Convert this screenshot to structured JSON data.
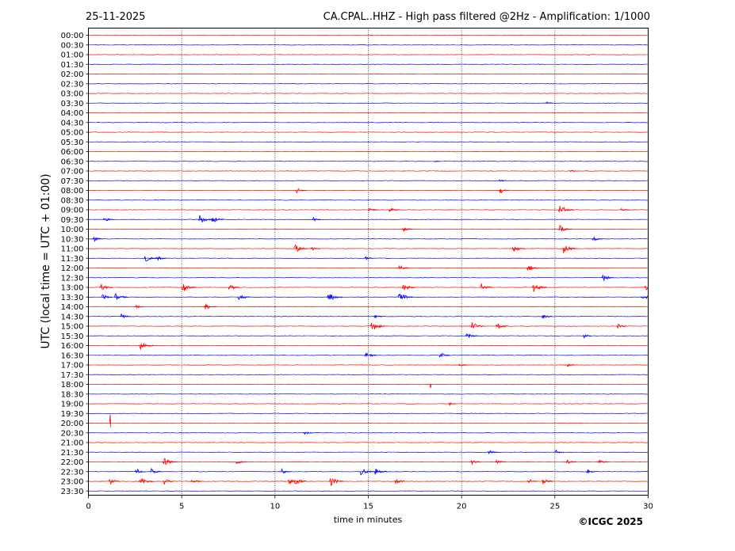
{
  "chart_data": {
    "type": "line",
    "date": "25-11-2025",
    "title": "CA.CPAL..HHZ - High pass filtered @2Hz - Amplification: 1/1000",
    "xlabel": "time in minutes",
    "ylabel": "UTC (local time = UTC + 01:00)",
    "copyright": "©ICGC 2025",
    "xlim": [
      0,
      30
    ],
    "x_ticks": [
      "0",
      "5",
      "10",
      "15",
      "20",
      "25",
      "30"
    ],
    "x_tick_values": [
      0,
      5,
      10,
      15,
      20,
      25,
      30
    ],
    "vgrid_minutes": [
      5,
      10,
      15,
      20,
      25
    ],
    "rows": [
      "00:00",
      "00:30",
      "01:00",
      "01:30",
      "02:00",
      "02:30",
      "03:00",
      "03:30",
      "04:00",
      "04:30",
      "05:00",
      "05:30",
      "06:00",
      "06:30",
      "07:00",
      "07:30",
      "08:00",
      "08:30",
      "09:00",
      "09:30",
      "10:00",
      "10:30",
      "11:00",
      "11:30",
      "12:00",
      "12:30",
      "13:00",
      "13:30",
      "14:00",
      "14:30",
      "15:00",
      "15:30",
      "16:00",
      "16:30",
      "17:00",
      "17:30",
      "18:00",
      "18:30",
      "19:00",
      "19:30",
      "20:00",
      "20:30",
      "21:00",
      "21:30",
      "22:00",
      "22:30",
      "23:00",
      "23:30"
    ],
    "trace_colors": [
      "#ff0000",
      "#0000ff"
    ],
    "events": [
      {
        "row": "03:30",
        "minute": 24.5,
        "amp": 0.25
      },
      {
        "row": "06:30",
        "minute": 18.5,
        "amp": 0.15
      },
      {
        "row": "07:00",
        "minute": 25.8,
        "amp": 0.18
      },
      {
        "row": "07:30",
        "minute": 22.0,
        "amp": 0.3
      },
      {
        "row": "08:00",
        "minute": 11.1,
        "amp": 0.55
      },
      {
        "row": "08:00",
        "minute": 22.0,
        "amp": 0.6
      },
      {
        "row": "08:30",
        "minute": 30.0,
        "amp": 0.5
      },
      {
        "row": "09:00",
        "minute": 15.0,
        "amp": 0.5
      },
      {
        "row": "09:00",
        "minute": 16.1,
        "amp": 0.6
      },
      {
        "row": "09:00",
        "minute": 25.2,
        "amp": 1.0
      },
      {
        "row": "09:00",
        "minute": 28.5,
        "amp": 0.4
      },
      {
        "row": "09:30",
        "minute": 0.8,
        "amp": 0.5
      },
      {
        "row": "09:30",
        "minute": 5.9,
        "amp": 0.9
      },
      {
        "row": "09:30",
        "minute": 6.6,
        "amp": 0.7
      },
      {
        "row": "09:30",
        "minute": 12.0,
        "amp": 0.4
      },
      {
        "row": "10:00",
        "minute": 16.8,
        "amp": 0.55
      },
      {
        "row": "10:00",
        "minute": 25.2,
        "amp": 0.8
      },
      {
        "row": "10:30",
        "minute": 0.2,
        "amp": 0.6
      },
      {
        "row": "10:30",
        "minute": 27.0,
        "amp": 0.5
      },
      {
        "row": "11:00",
        "minute": 11.0,
        "amp": 0.9
      },
      {
        "row": "11:00",
        "minute": 11.9,
        "amp": 0.5
      },
      {
        "row": "11:00",
        "minute": 22.7,
        "amp": 0.8
      },
      {
        "row": "11:00",
        "minute": 25.4,
        "amp": 0.9
      },
      {
        "row": "11:30",
        "minute": 3.0,
        "amp": 0.7
      },
      {
        "row": "11:30",
        "minute": 3.6,
        "amp": 0.6
      },
      {
        "row": "11:30",
        "minute": 14.8,
        "amp": 0.4
      },
      {
        "row": "12:00",
        "minute": 16.6,
        "amp": 0.6
      },
      {
        "row": "12:00",
        "minute": 23.5,
        "amp": 0.7
      },
      {
        "row": "12:30",
        "minute": 27.5,
        "amp": 0.7
      },
      {
        "row": "13:00",
        "minute": 0.6,
        "amp": 0.8
      },
      {
        "row": "13:00",
        "minute": 5.0,
        "amp": 0.9
      },
      {
        "row": "13:00",
        "minute": 7.5,
        "amp": 0.6
      },
      {
        "row": "13:00",
        "minute": 16.8,
        "amp": 0.8
      },
      {
        "row": "13:00",
        "minute": 21.0,
        "amp": 0.7
      },
      {
        "row": "13:00",
        "minute": 23.8,
        "amp": 0.9
      },
      {
        "row": "13:00",
        "minute": 29.8,
        "amp": 1.0
      },
      {
        "row": "13:30",
        "minute": 0.7,
        "amp": 0.6
      },
      {
        "row": "13:30",
        "minute": 1.4,
        "amp": 0.8
      },
      {
        "row": "13:30",
        "minute": 8.0,
        "amp": 0.7
      },
      {
        "row": "13:30",
        "minute": 12.8,
        "amp": 1.0
      },
      {
        "row": "13:30",
        "minute": 16.6,
        "amp": 0.9
      },
      {
        "row": "13:30",
        "minute": 29.6,
        "amp": 0.7
      },
      {
        "row": "14:00",
        "minute": 2.5,
        "amp": 0.4
      },
      {
        "row": "14:00",
        "minute": 6.2,
        "amp": 0.7
      },
      {
        "row": "14:30",
        "minute": 1.7,
        "amp": 0.5
      },
      {
        "row": "14:30",
        "minute": 15.3,
        "amp": 0.4
      },
      {
        "row": "14:30",
        "minute": 24.3,
        "amp": 0.5
      },
      {
        "row": "15:00",
        "minute": 15.1,
        "amp": 1.0
      },
      {
        "row": "15:00",
        "minute": 20.5,
        "amp": 0.8
      },
      {
        "row": "15:00",
        "minute": 21.8,
        "amp": 0.8
      },
      {
        "row": "15:00",
        "minute": 28.3,
        "amp": 0.5
      },
      {
        "row": "15:30",
        "minute": 20.2,
        "amp": 0.7
      },
      {
        "row": "15:30",
        "minute": 26.5,
        "amp": 0.4
      },
      {
        "row": "16:00",
        "minute": 2.7,
        "amp": 0.9
      },
      {
        "row": "16:30",
        "minute": 14.8,
        "amp": 0.7
      },
      {
        "row": "16:30",
        "minute": 18.8,
        "amp": 0.6
      },
      {
        "row": "17:00",
        "minute": 19.8,
        "amp": 0.4
      },
      {
        "row": "17:00",
        "minute": 25.6,
        "amp": 0.4
      },
      {
        "row": "18:00",
        "minute": 18.3,
        "amp": 2.5
      },
      {
        "row": "19:00",
        "minute": 19.3,
        "amp": 0.3
      },
      {
        "row": "20:00",
        "minute": 1.1,
        "amp": 2.2
      },
      {
        "row": "20:30",
        "minute": 11.5,
        "amp": 0.4
      },
      {
        "row": "21:30",
        "minute": 21.4,
        "amp": 0.5
      },
      {
        "row": "21:30",
        "minute": 25.0,
        "amp": 0.4
      },
      {
        "row": "22:00",
        "minute": 4.0,
        "amp": 0.8
      },
      {
        "row": "22:00",
        "minute": 7.9,
        "amp": 0.5
      },
      {
        "row": "22:00",
        "minute": 20.5,
        "amp": 0.5
      },
      {
        "row": "22:00",
        "minute": 21.8,
        "amp": 0.5
      },
      {
        "row": "22:00",
        "minute": 25.6,
        "amp": 0.5
      },
      {
        "row": "22:00",
        "minute": 27.3,
        "amp": 0.5
      },
      {
        "row": "22:30",
        "minute": 2.5,
        "amp": 0.6
      },
      {
        "row": "22:30",
        "minute": 3.3,
        "amp": 0.6
      },
      {
        "row": "22:30",
        "minute": 10.3,
        "amp": 0.5
      },
      {
        "row": "22:30",
        "minute": 14.5,
        "amp": 0.9
      },
      {
        "row": "22:30",
        "minute": 15.3,
        "amp": 0.8
      },
      {
        "row": "22:30",
        "minute": 26.7,
        "amp": 0.4
      },
      {
        "row": "23:00",
        "minute": 1.1,
        "amp": 0.6
      },
      {
        "row": "23:00",
        "minute": 2.7,
        "amp": 0.9
      },
      {
        "row": "23:00",
        "minute": 4.0,
        "amp": 0.6
      },
      {
        "row": "23:00",
        "minute": 5.5,
        "amp": 0.6
      },
      {
        "row": "23:00",
        "minute": 10.7,
        "amp": 0.6
      },
      {
        "row": "23:00",
        "minute": 11.0,
        "amp": 0.8
      },
      {
        "row": "23:00",
        "minute": 12.9,
        "amp": 0.9
      },
      {
        "row": "23:00",
        "minute": 16.4,
        "amp": 0.6
      },
      {
        "row": "23:00",
        "minute": 23.5,
        "amp": 0.6
      },
      {
        "row": "23:00",
        "minute": 24.3,
        "amp": 0.6
      }
    ]
  }
}
